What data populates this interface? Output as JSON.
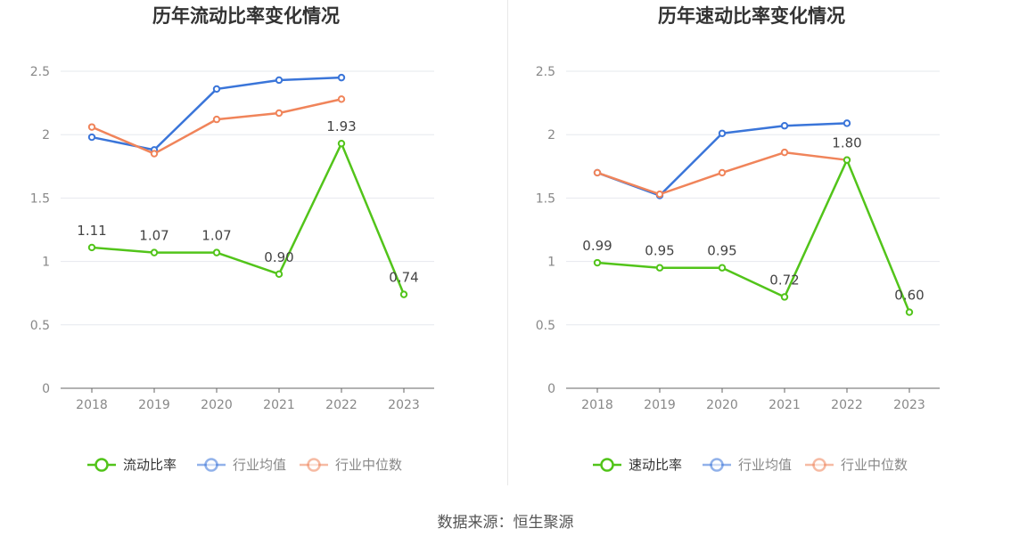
{
  "chart_data": [
    {
      "type": "line",
      "title": "历年流动比率变化情况",
      "categories": [
        "2018",
        "2019",
        "2020",
        "2021",
        "2022",
        "2023"
      ],
      "ylim": [
        0,
        2.5
      ],
      "yticks": [
        "0",
        "0.5",
        "1",
        "1.5",
        "2",
        "2.5"
      ],
      "yticks_values": [
        0,
        0.5,
        1,
        1.5,
        2,
        2.5
      ],
      "grid": true,
      "legend_position": "bottom",
      "series": [
        {
          "name": "流动比率",
          "color": "#52c41a",
          "values": [
            1.11,
            1.07,
            1.07,
            0.9,
            1.93,
            0.74
          ],
          "labels": [
            "1.11",
            "1.07",
            "1.07",
            "0.90",
            "1.93",
            "0.74"
          ]
        },
        {
          "name": "行业均值",
          "color": "#3a75d9",
          "values": [
            1.98,
            1.88,
            2.36,
            2.43,
            2.45,
            null
          ]
        },
        {
          "name": "行业中位数",
          "color": "#f0845a",
          "values": [
            2.06,
            1.85,
            2.12,
            2.17,
            2.28,
            null
          ]
        }
      ]
    },
    {
      "type": "line",
      "title": "历年速动比率变化情况",
      "categories": [
        "2018",
        "2019",
        "2020",
        "2021",
        "2022",
        "2023"
      ],
      "ylim": [
        0,
        2.5
      ],
      "yticks": [
        "0",
        "0.5",
        "1",
        "1.5",
        "2",
        "2.5"
      ],
      "yticks_values": [
        0,
        0.5,
        1,
        1.5,
        2,
        2.5
      ],
      "grid": true,
      "legend_position": "bottom",
      "series": [
        {
          "name": "速动比率",
          "color": "#52c41a",
          "values": [
            0.99,
            0.95,
            0.95,
            0.72,
            1.8,
            0.6
          ],
          "labels": [
            "0.99",
            "0.95",
            "0.95",
            "0.72",
            "1.80",
            "0.60"
          ]
        },
        {
          "name": "行业均值",
          "color": "#3a75d9",
          "values": [
            1.7,
            1.52,
            2.01,
            2.07,
            2.09,
            null
          ]
        },
        {
          "name": "行业中位数",
          "color": "#f0845a",
          "values": [
            1.7,
            1.53,
            1.7,
            1.86,
            1.8,
            null
          ]
        }
      ]
    }
  ],
  "source_text": "数据来源：恒生聚源"
}
